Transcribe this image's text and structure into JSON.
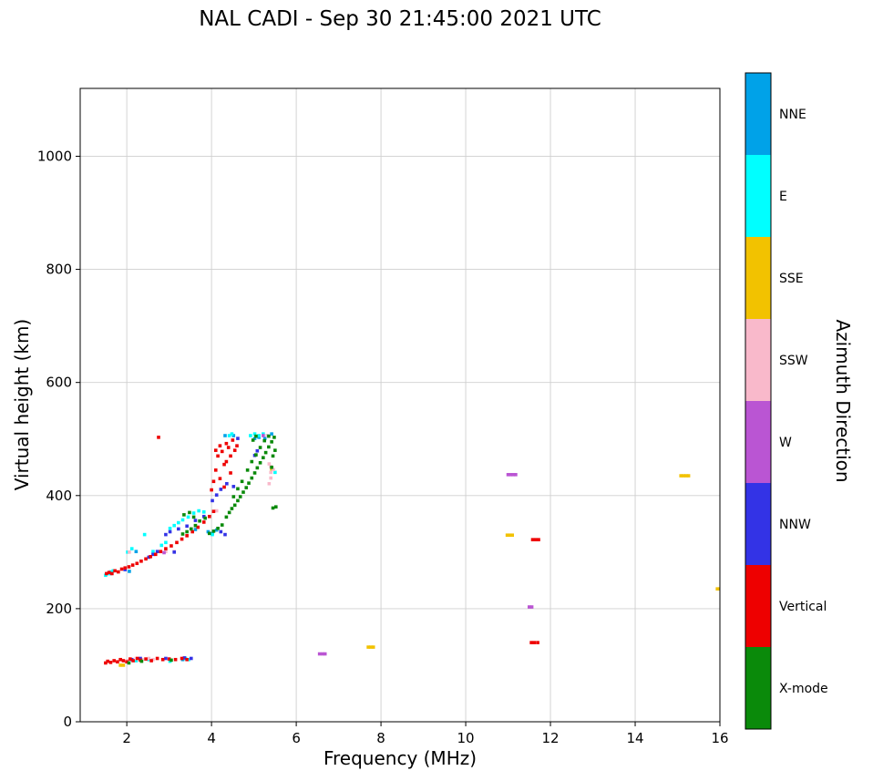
{
  "chart_data": {
    "type": "scatter",
    "title": "NAL CADI - Sep 30 21:45:00 2021 UTC",
    "xlabel": "Frequency (MHz)",
    "ylabel": "Virtual height (km)",
    "xlim": [
      0.9,
      16
    ],
    "ylim": [
      0,
      1120
    ],
    "xticks": [
      2,
      4,
      6,
      8,
      10,
      12,
      14,
      16
    ],
    "yticks": [
      0,
      200,
      400,
      600,
      800,
      1000
    ],
    "grid": true,
    "grid_color": "#cfcfcf",
    "marker": "square",
    "marker_size_px": 3.6,
    "colorbar": {
      "title": "Azimuth Direction",
      "categories": [
        {
          "label": "NNE",
          "color": "#00A2E8"
        },
        {
          "label": "E",
          "color": "#00FFFF"
        },
        {
          "label": "SSE",
          "color": "#F2C200"
        },
        {
          "label": "SSW",
          "color": "#F9B9CB"
        },
        {
          "label": "W",
          "color": "#BA55D3"
        },
        {
          "label": "NNW",
          "color": "#3333E6"
        },
        {
          "label": "Vertical",
          "color": "#EE0000"
        },
        {
          "label": "X-mode",
          "color": "#0A8A0A"
        }
      ]
    },
    "series": [
      {
        "name": "NNE",
        "color": "#00A2E8",
        "points": [
          [
            3.92,
            336
          ],
          [
            4.02,
            333
          ],
          [
            4.12,
            339
          ],
          [
            5.02,
            501
          ],
          [
            5.12,
            503
          ],
          [
            5.26,
            501
          ],
          [
            3.32,
            110
          ],
          [
            3.38,
            112
          ],
          [
            4.52,
            506
          ],
          [
            2.06,
            266
          ],
          [
            1.62,
            262
          ],
          [
            4.32,
            506
          ],
          [
            5.42,
            509
          ],
          [
            2.22,
            301
          ],
          [
            3.62,
            340
          ]
        ]
      },
      {
        "name": "E",
        "color": "#00FFFF",
        "points": [
          [
            1.5,
            259
          ],
          [
            1.56,
            262
          ],
          [
            1.62,
            265
          ],
          [
            1.68,
            267
          ],
          [
            2.02,
            300
          ],
          [
            2.12,
            306
          ],
          [
            2.82,
            312
          ],
          [
            2.92,
            317
          ],
          [
            3.02,
            342
          ],
          [
            3.12,
            347
          ],
          [
            3.22,
            352
          ],
          [
            3.32,
            357
          ],
          [
            3.45,
            362
          ],
          [
            3.58,
            369
          ],
          [
            3.7,
            373
          ],
          [
            3.82,
            371
          ],
          [
            4.92,
            506
          ],
          [
            5.02,
            509
          ],
          [
            5.12,
            506
          ],
          [
            5.22,
            509
          ],
          [
            5.32,
            506
          ],
          [
            4.42,
            506
          ],
          [
            4.48,
            509
          ],
          [
            2.22,
            108
          ],
          [
            2.52,
            110
          ],
          [
            3.02,
            107
          ],
          [
            3.38,
            112
          ],
          [
            3.46,
            110
          ],
          [
            5.5,
            441
          ],
          [
            5.45,
            446
          ],
          [
            4.02,
            331
          ],
          [
            2.62,
            301
          ],
          [
            2.42,
            331
          ]
        ]
      },
      {
        "name": "SSE",
        "color": "#F2C200",
        "points": [
          [
            1.85,
            100
          ],
          [
            1.92,
            100
          ],
          [
            7.7,
            132
          ],
          [
            7.76,
            132
          ],
          [
            7.82,
            132
          ],
          [
            10.98,
            330
          ],
          [
            11.04,
            330
          ],
          [
            11.1,
            330
          ],
          [
            15.08,
            435
          ],
          [
            15.14,
            435
          ],
          [
            15.2,
            435
          ],
          [
            15.26,
            435
          ],
          [
            15.94,
            235
          ],
          [
            16.0,
            235
          ],
          [
            5.42,
            447
          ]
        ]
      },
      {
        "name": "SSW",
        "color": "#F9B9CB",
        "points": [
          [
            2.02,
            108
          ],
          [
            2.12,
            110
          ],
          [
            2.22,
            112
          ],
          [
            2.36,
            110
          ],
          [
            2.52,
            112
          ],
          [
            2.62,
            110
          ],
          [
            3.12,
            301
          ],
          [
            5.36,
            421
          ],
          [
            5.4,
            431
          ],
          [
            5.4,
            441
          ],
          [
            5.4,
            451
          ],
          [
            5.36,
            456
          ],
          [
            5.46,
            446
          ],
          [
            2.92,
            301
          ],
          [
            4.12,
            373
          ],
          [
            5.32,
            506
          ],
          [
            2.06,
            300
          ]
        ]
      },
      {
        "name": "W",
        "color": "#BA55D3",
        "points": [
          [
            6.55,
            120
          ],
          [
            6.62,
            120
          ],
          [
            6.68,
            120
          ],
          [
            11.0,
            437
          ],
          [
            11.06,
            437
          ],
          [
            11.12,
            437
          ],
          [
            11.18,
            437
          ],
          [
            11.5,
            203
          ],
          [
            11.56,
            203
          ],
          [
            5.22,
            506
          ],
          [
            2.88,
            299
          ]
        ]
      },
      {
        "name": "NNW",
        "color": "#3333E6",
        "points": [
          [
            2.52,
            291
          ],
          [
            2.62,
            296
          ],
          [
            2.72,
            301
          ],
          [
            2.92,
            331
          ],
          [
            3.02,
            336
          ],
          [
            3.22,
            341
          ],
          [
            3.42,
            346
          ],
          [
            3.62,
            356
          ],
          [
            3.82,
            363
          ],
          [
            4.02,
            391
          ],
          [
            4.12,
            401
          ],
          [
            4.22,
            411
          ],
          [
            4.36,
            421
          ],
          [
            4.52,
            416
          ],
          [
            5.02,
            471
          ],
          [
            5.08,
            479
          ],
          [
            2.12,
            110
          ],
          [
            2.32,
            112
          ],
          [
            2.92,
            112
          ],
          [
            3.36,
            113
          ],
          [
            3.52,
            112
          ],
          [
            4.62,
            501
          ],
          [
            4.32,
            331
          ],
          [
            4.22,
            336
          ],
          [
            1.96,
            269
          ],
          [
            3.12,
            300
          ]
        ]
      },
      {
        "name": "Vertical",
        "color": "#EE0000",
        "points": [
          [
            1.5,
            104
          ],
          [
            1.55,
            107
          ],
          [
            1.62,
            105
          ],
          [
            1.7,
            108
          ],
          [
            1.78,
            106
          ],
          [
            1.85,
            110
          ],
          [
            1.92,
            108
          ],
          [
            2.0,
            106
          ],
          [
            2.08,
            111
          ],
          [
            2.15,
            108
          ],
          [
            2.25,
            112
          ],
          [
            2.32,
            109
          ],
          [
            2.45,
            111
          ],
          [
            2.58,
            108
          ],
          [
            2.72,
            112
          ],
          [
            2.85,
            110
          ],
          [
            3.0,
            111
          ],
          [
            3.15,
            110
          ],
          [
            3.3,
            112
          ],
          [
            3.42,
            110
          ],
          [
            1.52,
            262
          ],
          [
            1.58,
            264
          ],
          [
            1.65,
            262
          ],
          [
            1.72,
            267
          ],
          [
            1.8,
            265
          ],
          [
            1.88,
            270
          ],
          [
            1.96,
            272
          ],
          [
            2.05,
            274
          ],
          [
            2.14,
            277
          ],
          [
            2.24,
            280
          ],
          [
            2.34,
            284
          ],
          [
            2.45,
            288
          ],
          [
            2.56,
            292
          ],
          [
            2.68,
            296
          ],
          [
            2.8,
            301
          ],
          [
            2.92,
            306
          ],
          [
            3.05,
            311
          ],
          [
            3.18,
            317
          ],
          [
            3.3,
            323
          ],
          [
            3.42,
            329
          ],
          [
            3.55,
            336
          ],
          [
            3.68,
            344
          ],
          [
            3.82,
            353
          ],
          [
            3.95,
            363
          ],
          [
            4.05,
            372
          ],
          [
            4.0,
            410
          ],
          [
            4.05,
            425
          ],
          [
            4.1,
            445
          ],
          [
            4.15,
            470
          ],
          [
            4.2,
            488
          ],
          [
            4.25,
            478
          ],
          [
            4.3,
            455
          ],
          [
            4.35,
            492
          ],
          [
            4.4,
            485
          ],
          [
            4.45,
            470
          ],
          [
            4.5,
            498
          ],
          [
            4.55,
            480
          ],
          [
            4.2,
            430
          ],
          [
            4.3,
            415
          ],
          [
            4.45,
            440
          ],
          [
            4.6,
            488
          ],
          [
            4.1,
            480
          ],
          [
            4.35,
            460
          ],
          [
            2.75,
            503
          ],
          [
            11.58,
            322
          ],
          [
            11.65,
            322
          ],
          [
            11.72,
            322
          ],
          [
            11.55,
            140
          ],
          [
            11.62,
            140
          ],
          [
            11.7,
            140
          ]
        ]
      },
      {
        "name": "X-mode",
        "color": "#0A8A0A",
        "points": [
          [
            3.32,
            332
          ],
          [
            3.42,
            336
          ],
          [
            3.52,
            341
          ],
          [
            3.62,
            347
          ],
          [
            3.35,
            366
          ],
          [
            3.48,
            370
          ],
          [
            3.58,
            362
          ],
          [
            3.72,
            355
          ],
          [
            3.85,
            360
          ],
          [
            3.95,
            333
          ],
          [
            4.05,
            337
          ],
          [
            4.15,
            342
          ],
          [
            4.25,
            348
          ],
          [
            4.35,
            362
          ],
          [
            4.42,
            370
          ],
          [
            4.48,
            377
          ],
          [
            4.55,
            383
          ],
          [
            4.62,
            391
          ],
          [
            4.68,
            398
          ],
          [
            4.75,
            406
          ],
          [
            4.82,
            414
          ],
          [
            4.88,
            422
          ],
          [
            4.95,
            431
          ],
          [
            5.02,
            440
          ],
          [
            5.08,
            449
          ],
          [
            5.15,
            458
          ],
          [
            5.22,
            467
          ],
          [
            5.28,
            476
          ],
          [
            5.35,
            486
          ],
          [
            5.42,
            495
          ],
          [
            5.48,
            503
          ],
          [
            4.85,
            445
          ],
          [
            4.95,
            460
          ],
          [
            5.05,
            472
          ],
          [
            5.15,
            485
          ],
          [
            5.25,
            497
          ],
          [
            5.35,
            505
          ],
          [
            4.72,
            425
          ],
          [
            4.62,
            412
          ],
          [
            4.52,
            398
          ],
          [
            5.45,
            470
          ],
          [
            5.5,
            480
          ],
          [
            5.42,
            450
          ],
          [
            5.05,
            505
          ],
          [
            4.98,
            498
          ],
          [
            5.52,
            380
          ],
          [
            5.45,
            378
          ],
          [
            2.05,
            104
          ],
          [
            2.35,
            107
          ],
          [
            3.05,
            109
          ]
        ]
      }
    ]
  }
}
